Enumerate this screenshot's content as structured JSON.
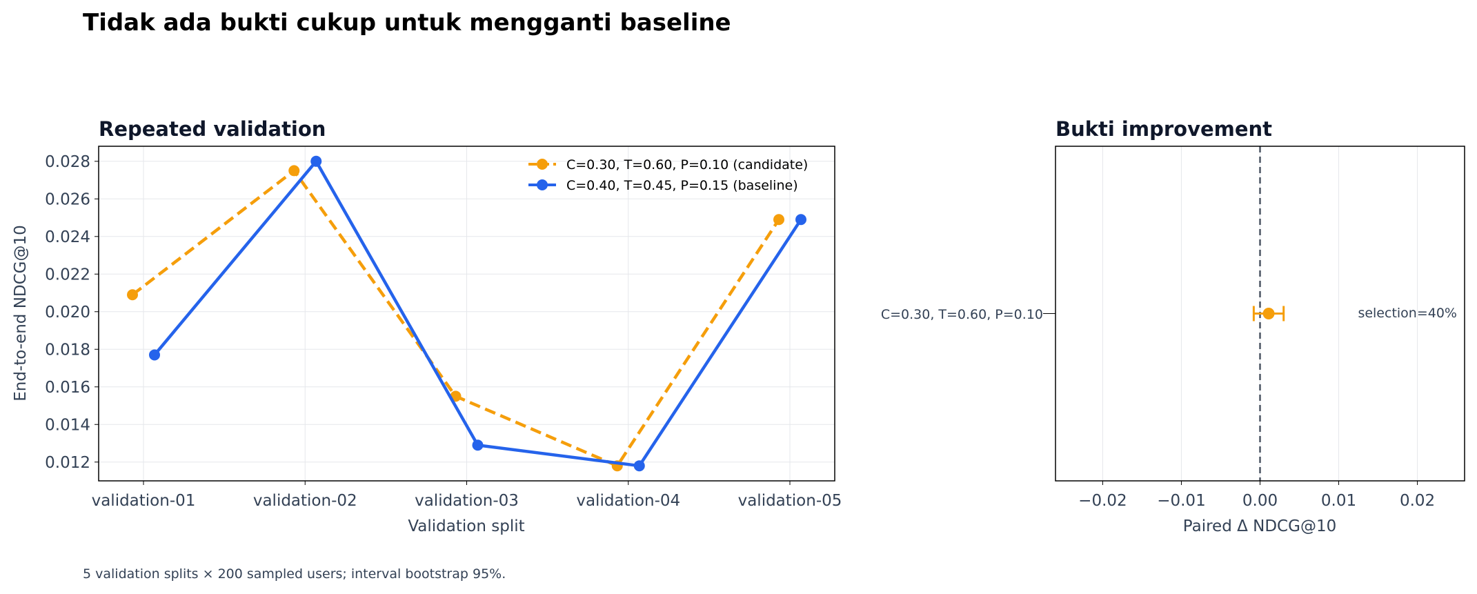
{
  "figure": {
    "title": "Tidak ada bukti cukup untuk mengganti baseline",
    "footnote": "5 validation splits × 200 sampled users; interval bootstrap 95%."
  },
  "colors": {
    "candidate": "#f59e0b",
    "baseline": "#2563eb",
    "zero_line": "#4b5563",
    "grid": "#e5e7eb"
  },
  "chart_data": [
    {
      "type": "line",
      "title": "Repeated validation",
      "xlabel": "Validation split",
      "ylabel": "End-to-end NDCG@10",
      "categories": [
        "validation-01",
        "validation-02",
        "validation-03",
        "validation-04",
        "validation-05"
      ],
      "ylim": [
        0.011,
        0.0288
      ],
      "yticks": [
        0.012,
        0.014,
        0.016,
        0.018,
        0.02,
        0.022,
        0.024,
        0.026,
        0.028
      ],
      "ytick_labels": [
        "0.012",
        "0.014",
        "0.016",
        "0.018",
        "0.020",
        "0.022",
        "0.024",
        "0.026",
        "0.028"
      ],
      "grid": true,
      "legend": "top-right",
      "series": [
        {
          "name": "C=0.30, T=0.60, P=0.10 (candidate)",
          "key": "candidate",
          "style": "dashed",
          "values": [
            0.0209,
            0.0275,
            0.0155,
            0.0118,
            0.0249
          ]
        },
        {
          "name": "C=0.40, T=0.45, P=0.15 (baseline)",
          "key": "baseline",
          "style": "solid",
          "values": [
            0.0177,
            0.028,
            0.0129,
            0.0118,
            0.0249
          ]
        }
      ]
    },
    {
      "type": "scatter",
      "title": "Bukti improvement",
      "xlabel": "Paired Δ NDCG@10",
      "xlim": [
        -0.026,
        0.026
      ],
      "xticks": [
        -0.02,
        -0.01,
        0.0,
        0.01,
        0.02
      ],
      "xtick_labels": [
        "−0.02",
        "−0.01",
        "0.00",
        "0.01",
        "0.02"
      ],
      "grid": true,
      "reference_line_x": 0.0,
      "points": [
        {
          "label": "C=0.30, T=0.60, P=0.10",
          "mean": 0.0011,
          "ci": [
            -0.0008,
            0.003
          ],
          "annotation": "selection=40%"
        }
      ]
    }
  ]
}
